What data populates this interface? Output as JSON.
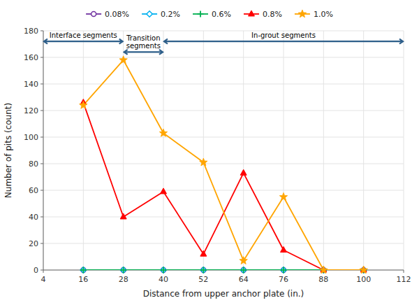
{
  "chart_data": {
    "type": "line",
    "xlabel": "Distance from upper anchor plate (in.)",
    "ylabel": "Number of pits (count)",
    "xlim": [
      4,
      112
    ],
    "ylim": [
      0,
      180
    ],
    "xticks": [
      4,
      16,
      28,
      40,
      52,
      64,
      76,
      88,
      100,
      112
    ],
    "yticks": [
      0,
      20,
      40,
      60,
      80,
      100,
      120,
      140,
      160,
      180
    ],
    "grid": true,
    "legend": "top",
    "x": [
      16,
      28,
      40,
      52,
      64,
      76,
      88,
      100
    ],
    "series": [
      {
        "name": "0.08%",
        "color": "#7030A0",
        "marker": "circle-open",
        "values": [
          0,
          0,
          0,
          0,
          0,
          0,
          0,
          0
        ]
      },
      {
        "name": "0.2%",
        "color": "#00B0F0",
        "marker": "diamond-open",
        "values": [
          0,
          0,
          0,
          0,
          0,
          0,
          0,
          0
        ]
      },
      {
        "name": "0.6%",
        "color": "#00B050",
        "marker": "plus",
        "values": [
          0,
          0,
          0,
          0,
          0,
          0,
          0,
          0
        ]
      },
      {
        "name": "0.8%",
        "color": "#FF0000",
        "marker": "triangle",
        "values": [
          126,
          40,
          59,
          12,
          73,
          15,
          0,
          0
        ]
      },
      {
        "name": "1.0%",
        "color": "#FFA500",
        "marker": "star",
        "values": [
          124,
          158,
          103,
          81,
          7,
          55,
          0,
          0
        ]
      }
    ],
    "annotations": [
      {
        "text": "Interface segments",
        "x": [
          4,
          28
        ],
        "y": 172,
        "color": "#2E5F8A"
      },
      {
        "text": "Transition\nsegments",
        "x": [
          28,
          40
        ],
        "y": 164,
        "color": "#2E5F8A"
      },
      {
        "text": "In-grout segments",
        "x": [
          40,
          112
        ],
        "y": 172,
        "color": "#2E5F8A"
      }
    ]
  }
}
